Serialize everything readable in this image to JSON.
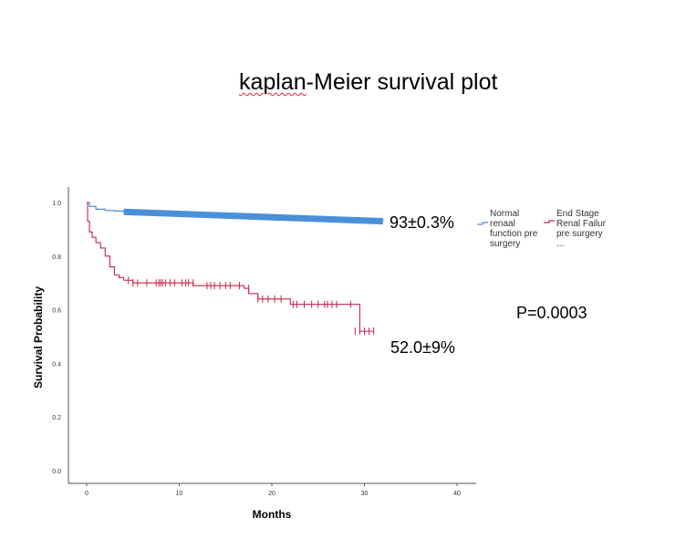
{
  "title_part1": "kaplan",
  "title_part2": "-Meier survival plot",
  "p_value": "P=0.0003",
  "annotation_top": "93±0.3%",
  "annotation_bottom": "52.0±9%",
  "colors": {
    "normal": "#4a90d9",
    "esrf": "#c8244f",
    "axis": "#555555"
  },
  "chart_data": {
    "type": "line",
    "title": "",
    "xlabel": "Months",
    "ylabel": "Survival Probability",
    "xlim": [
      0,
      40
    ],
    "ylim": [
      0.0,
      1.0
    ],
    "x_ticks": [
      "0",
      "10",
      "20",
      "30",
      "40"
    ],
    "y_ticks": [
      "0.0",
      "0.2",
      "0.4",
      "0.6",
      "0.8",
      "1.0"
    ],
    "legend_position": "right",
    "series": [
      {
        "name": "Normal renaal function pre surgery",
        "legend_lines": [
          "Normal",
          "renaal",
          "function pre",
          "surgery"
        ],
        "step": true,
        "x": [
          0,
          0.3,
          1,
          2,
          3,
          4,
          8,
          12,
          16,
          20,
          24,
          28,
          32
        ],
        "y": [
          1.0,
          0.985,
          0.975,
          0.97,
          0.968,
          0.965,
          0.96,
          0.955,
          0.95,
          0.945,
          0.94,
          0.935,
          0.93
        ],
        "band_start": 4,
        "band_upper": [
          0.977,
          0.972,
          0.967,
          0.962,
          0.957,
          0.952,
          0.947,
          0.942
        ],
        "band_lower": [
          0.953,
          0.948,
          0.943,
          0.938,
          0.933,
          0.928,
          0.923,
          0.918
        ]
      },
      {
        "name": "End Stage Renal Failure pre surgery",
        "legend_lines": [
          "End Stage",
          "Renal Failur",
          "pre surgery",
          "..."
        ],
        "step": true,
        "x": [
          0,
          0.1,
          0.3,
          0.6,
          1.0,
          1.5,
          2.0,
          2.5,
          3.0,
          3.5,
          4.0,
          5.0,
          7.0,
          8.5,
          11.5,
          14.0,
          17.0,
          17.5,
          18.5,
          21.0,
          22.0,
          23.0,
          26.0,
          28.5,
          29.5,
          31.0
        ],
        "y": [
          1.0,
          0.93,
          0.89,
          0.87,
          0.85,
          0.83,
          0.8,
          0.76,
          0.73,
          0.72,
          0.71,
          0.7,
          0.7,
          0.7,
          0.69,
          0.69,
          0.68,
          0.66,
          0.64,
          0.64,
          0.62,
          0.62,
          0.62,
          0.62,
          0.52,
          0.52
        ],
        "censor_x": [
          4.5,
          5.0,
          5.5,
          6.5,
          7.5,
          7.8,
          8.0,
          8.2,
          8.5,
          9.0,
          9.5,
          10.3,
          10.7,
          11.0,
          11.5,
          13.0,
          13.4,
          13.8,
          14.4,
          15.0,
          15.5,
          16.5,
          17.5,
          18.5,
          19.0,
          19.6,
          20.3,
          21.0,
          22.3,
          22.7,
          23.5,
          24.3,
          25.0,
          25.7,
          26.0,
          26.5,
          27.0,
          28.5,
          29.0,
          29.5,
          30.0,
          30.5,
          31.0
        ],
        "censor_y": [
          0.71,
          0.7,
          0.7,
          0.7,
          0.7,
          0.7,
          0.7,
          0.7,
          0.7,
          0.7,
          0.7,
          0.7,
          0.7,
          0.7,
          0.7,
          0.69,
          0.69,
          0.69,
          0.69,
          0.69,
          0.69,
          0.69,
          0.68,
          0.64,
          0.64,
          0.64,
          0.64,
          0.64,
          0.62,
          0.62,
          0.62,
          0.62,
          0.62,
          0.62,
          0.62,
          0.62,
          0.62,
          0.62,
          0.52,
          0.52,
          0.52,
          0.52,
          0.52
        ]
      }
    ]
  }
}
